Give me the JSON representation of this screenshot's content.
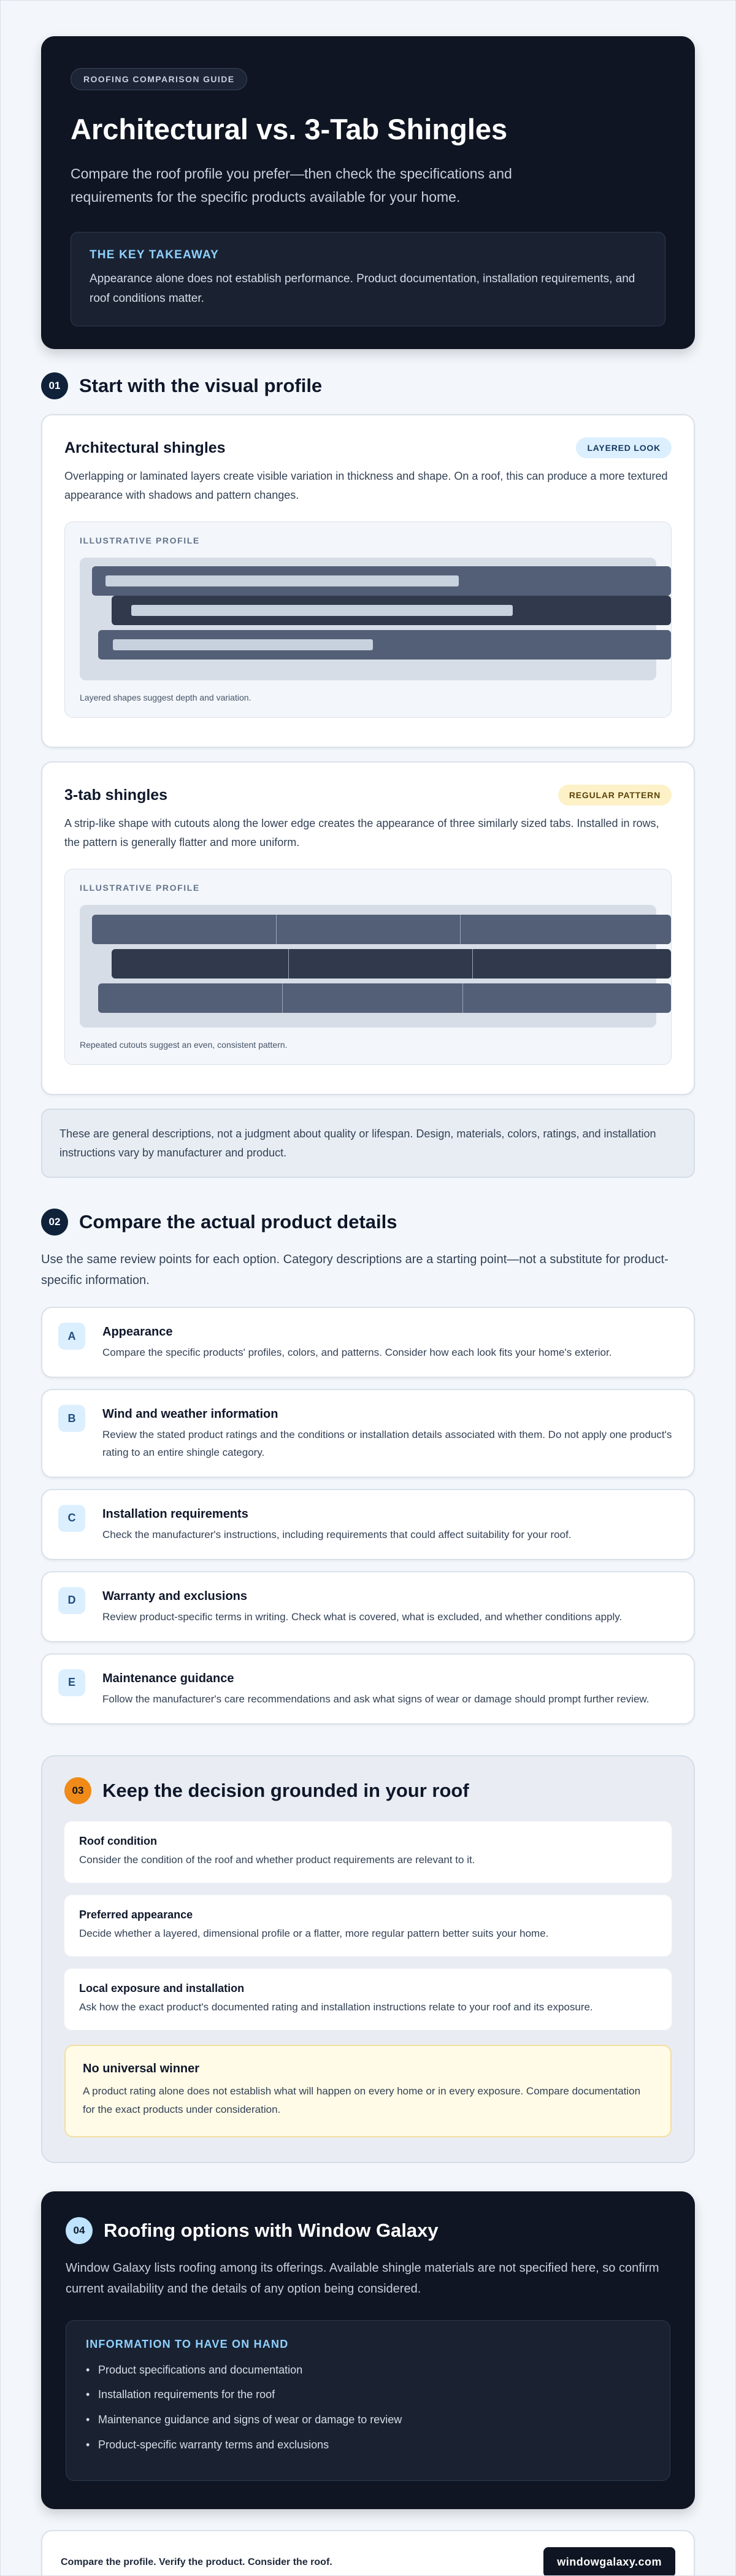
{
  "hero": {
    "eyebrow": "ROOFING COMPARISON GUIDE",
    "title": "Architectural vs. 3-Tab Shingles",
    "lead": "Compare the roof profile you prefer—then check the specifications and requirements for the specific products available for your home.",
    "takeaway_label": "THE KEY TAKEAWAY",
    "takeaway_text": "Appearance alone does not establish performance. Product documentation, installation requirements, and roof conditions matter."
  },
  "section1": {
    "number": "01",
    "title": "Start with the visual profile",
    "cards": [
      {
        "title": "Architectural shingles",
        "badge": "LAYERED LOOK",
        "description": "Overlapping or laminated layers create visible variation in thickness and shape. On a roof, this can produce a more textured appearance with shadows and pattern changes.",
        "illus_label": "ILLUSTRATIVE PROFILE",
        "caption": "Layered shapes suggest depth and variation."
      },
      {
        "title": "3-tab shingles",
        "badge": "REGULAR PATTERN",
        "description": "A strip-like shape with cutouts along the lower edge creates the appearance of three similarly sized tabs. Installed in rows, the pattern is generally flatter and more uniform.",
        "illus_label": "ILLUSTRATIVE PROFILE",
        "caption": "Repeated cutouts suggest an even, consistent pattern."
      }
    ],
    "note": "These are general descriptions, not a judgment about quality or lifespan. Design, materials, colors, ratings, and installation instructions vary by manufacturer and product."
  },
  "section2": {
    "number": "02",
    "title": "Compare the actual product details",
    "intro": "Use the same review points for each option. Category descriptions are a starting point—not a substitute for product-specific information.",
    "items": [
      {
        "letter": "A",
        "title": "Appearance",
        "text": "Compare the specific products' profiles, colors, and patterns. Consider how each look fits your home's exterior."
      },
      {
        "letter": "B",
        "title": "Wind and weather information",
        "text": "Review the stated product ratings and the conditions or installation details associated with them. Do not apply one product's rating to an entire shingle category."
      },
      {
        "letter": "C",
        "title": "Installation requirements",
        "text": "Check the manufacturer's instructions, including requirements that could affect suitability for your roof."
      },
      {
        "letter": "D",
        "title": "Warranty and exclusions",
        "text": "Review product-specific terms in writing. Check what is covered, what is excluded, and whether conditions apply."
      },
      {
        "letter": "E",
        "title": "Maintenance guidance",
        "text": "Follow the manufacturer's care recommendations and ask what signs of wear or damage should prompt further review."
      }
    ]
  },
  "section3": {
    "number": "03",
    "title": "Keep the decision grounded in your roof",
    "factors": [
      {
        "title": "Roof condition",
        "text": "Consider the condition of the roof and whether product requirements are relevant to it."
      },
      {
        "title": "Preferred appearance",
        "text": "Decide whether a layered, dimensional profile or a flatter, more regular pattern better suits your home."
      },
      {
        "title": "Local exposure and installation",
        "text": "Ask how the exact product's documented rating and installation instructions relate to your roof and its exposure."
      }
    ],
    "winner_title": "No universal winner",
    "winner_text": "A product rating alone does not establish what will happen on every home or in every exposure. Compare documentation for the exact products under consideration."
  },
  "section4": {
    "number": "04",
    "title": "Roofing options with Window Galaxy",
    "lead": "Window Galaxy lists roofing among its offerings. Available shingle materials are not specified here, so confirm current availability and the details of any option being considered.",
    "info_label": "INFORMATION TO HAVE ON HAND",
    "info_items": [
      "Product specifications and documentation",
      "Installation requirements for the roof",
      "Maintenance guidance and signs of wear or damage to review",
      "Product-specific warranty terms and exclusions"
    ]
  },
  "footer": {
    "tagline": "Compare the profile. Verify the product. Consider the roof.",
    "site": "windowgalaxy.com"
  }
}
